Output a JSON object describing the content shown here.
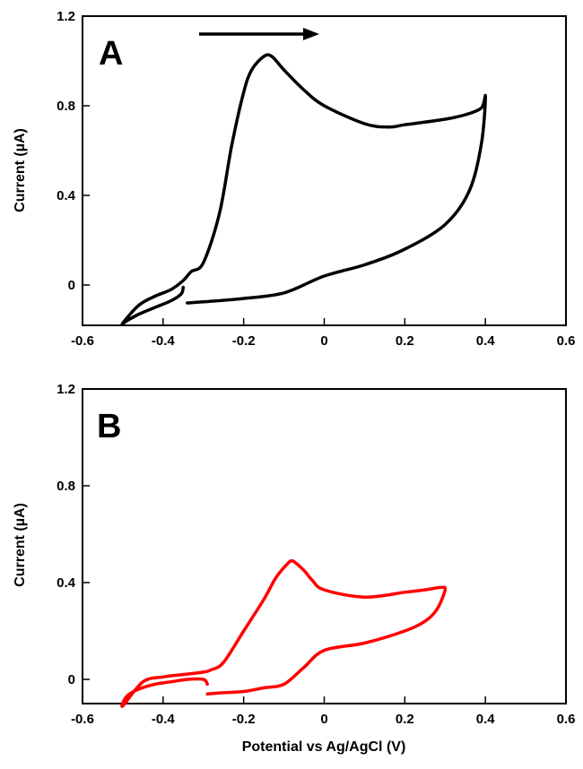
{
  "chart_data": [
    {
      "type": "line",
      "panel_label": "A",
      "xlabel": "",
      "ylabel": "Current (µA)",
      "xlim": [
        -0.6,
        0.6
      ],
      "ylim": [
        -0.18,
        1.2
      ],
      "xticks": [
        "-0.6",
        "-0.4",
        "-0.2",
        "0",
        "0.2",
        "0.4",
        "0.6"
      ],
      "yticks": [
        "0",
        "0.4",
        "0.8",
        "1.2"
      ],
      "grid": false,
      "annotation": "scan direction arrow pointing right",
      "series": [
        {
          "color": "#000000",
          "x": [
            -0.34,
            -0.3,
            -0.2,
            -0.1,
            0,
            0.1,
            0.2,
            0.3,
            0.36,
            0.39,
            0.4,
            0.39,
            0.35,
            0.3,
            0.2,
            0.16,
            0.1,
            0,
            -0.05,
            -0.1,
            -0.13,
            -0.15,
            -0.18,
            -0.2,
            -0.23,
            -0.26,
            -0.3,
            -0.33,
            -0.35,
            -0.38,
            -0.42,
            -0.46,
            -0.5,
            -0.49,
            -0.46,
            -0.42,
            -0.38,
            -0.355,
            -0.35
          ],
          "y": [
            -0.08,
            -0.075,
            -0.06,
            -0.035,
            0.04,
            0.09,
            0.16,
            0.27,
            0.42,
            0.63,
            0.84,
            0.79,
            0.76,
            0.74,
            0.715,
            0.705,
            0.72,
            0.8,
            0.87,
            0.96,
            1.02,
            1.02,
            0.96,
            0.86,
            0.62,
            0.32,
            0.1,
            0.06,
            0.02,
            -0.02,
            -0.05,
            -0.09,
            -0.17,
            -0.16,
            -0.13,
            -0.1,
            -0.07,
            -0.04,
            -0.01
          ]
        }
      ]
    },
    {
      "type": "line",
      "panel_label": "B",
      "xlabel": "Potential vs Ag/AgCl (V)",
      "ylabel": "Current (µA)",
      "xlim": [
        -0.6,
        0.6
      ],
      "ylim": [
        -0.1,
        1.2
      ],
      "xticks": [
        "-0.6",
        "-0.4",
        "-0.2",
        "0",
        "0.2",
        "0.4",
        "0.6"
      ],
      "yticks": [
        "0",
        "0.4",
        "0.8",
        "1.2"
      ],
      "grid": false,
      "series": [
        {
          "color": "#ff0000",
          "x": [
            -0.29,
            -0.25,
            -0.2,
            -0.15,
            -0.1,
            -0.05,
            0,
            0.1,
            0.2,
            0.25,
            0.28,
            0.3,
            0.29,
            0.25,
            0.2,
            0.1,
            0,
            -0.03,
            -0.05,
            -0.07,
            -0.08,
            -0.09,
            -0.12,
            -0.15,
            -0.2,
            -0.25,
            -0.28,
            -0.3,
            -0.35,
            -0.4,
            -0.45,
            -0.5,
            -0.49,
            -0.46,
            -0.42,
            -0.38,
            -0.34,
            -0.3,
            -0.29
          ],
          "y": [
            -0.06,
            -0.055,
            -0.05,
            -0.035,
            -0.02,
            0.05,
            0.12,
            0.15,
            0.2,
            0.24,
            0.29,
            0.37,
            0.38,
            0.37,
            0.36,
            0.34,
            0.37,
            0.41,
            0.45,
            0.48,
            0.49,
            0.48,
            0.42,
            0.33,
            0.2,
            0.07,
            0.04,
            0.03,
            0.02,
            0.01,
            -0.01,
            -0.11,
            -0.07,
            -0.04,
            -0.02,
            -0.01,
            0.0,
            0.0,
            -0.02
          ]
        }
      ]
    }
  ]
}
